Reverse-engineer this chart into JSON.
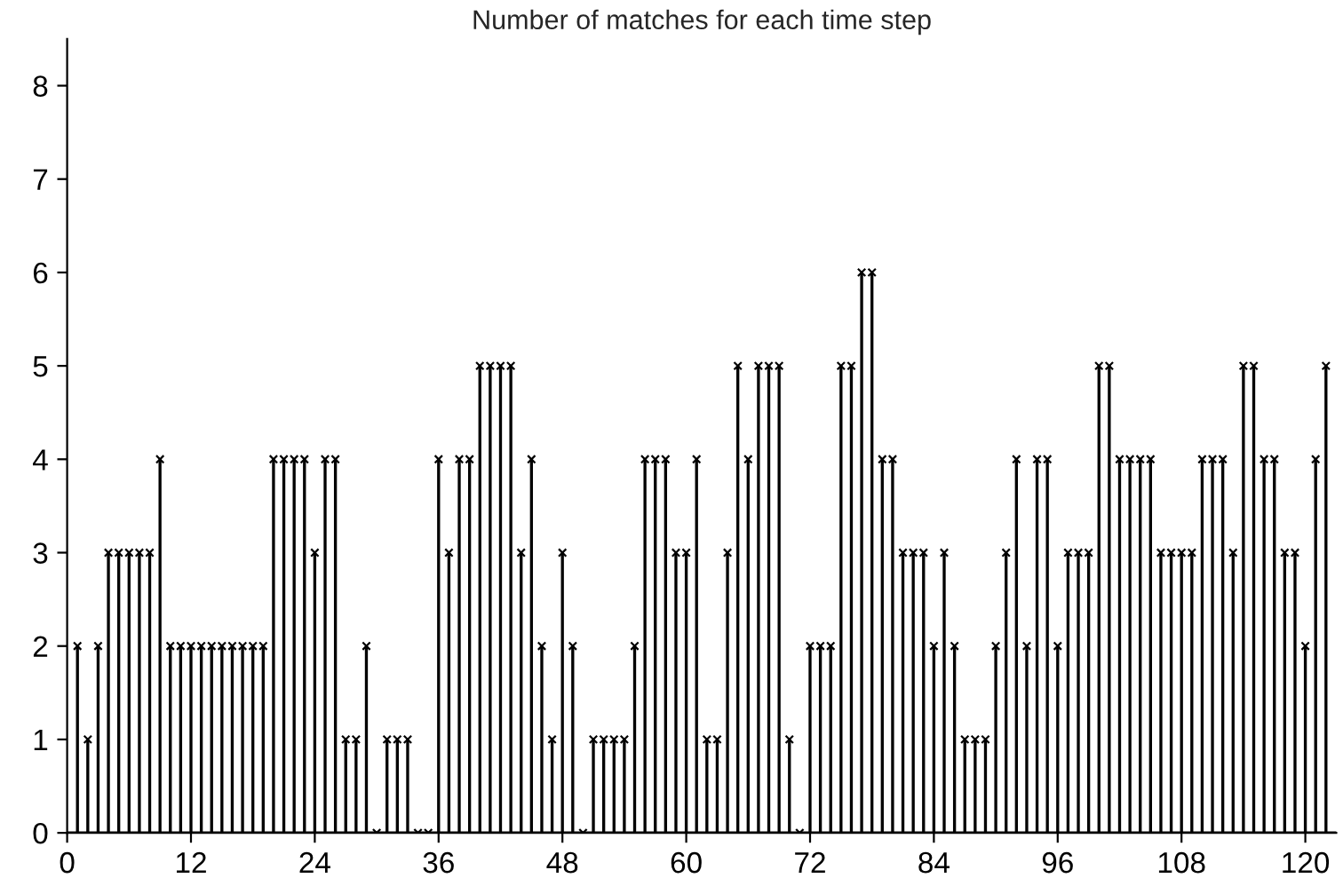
{
  "chart_data": {
    "type": "lollipop",
    "title": "Number of matches for each time step",
    "x": [
      1,
      2,
      3,
      4,
      5,
      6,
      7,
      8,
      9,
      10,
      11,
      12,
      13,
      14,
      15,
      16,
      17,
      18,
      19,
      20,
      21,
      22,
      23,
      24,
      25,
      26,
      27,
      28,
      29,
      30,
      31,
      32,
      33,
      34,
      35,
      36,
      37,
      38,
      39,
      40,
      41,
      42,
      43,
      44,
      45,
      46,
      47,
      48,
      49,
      50,
      51,
      52,
      53,
      54,
      55,
      56,
      57,
      58,
      59,
      60,
      61,
      62,
      63,
      64,
      65,
      66,
      67,
      68,
      69,
      70,
      71,
      72,
      73,
      74,
      75,
      76,
      77,
      78,
      79,
      80,
      81,
      82,
      83,
      84,
      85,
      86,
      87,
      88,
      89,
      90,
      91,
      92,
      93,
      94,
      95,
      96,
      97,
      98,
      99,
      100,
      101,
      102,
      103,
      104,
      105,
      106,
      107,
      108,
      109,
      110,
      111,
      112,
      113,
      114,
      115,
      116,
      117,
      118,
      119,
      120,
      121,
      122
    ],
    "series": [
      {
        "color": "#000000",
        "values": [
          2,
          1,
          2,
          3,
          3,
          3,
          3,
          3,
          4,
          2,
          2,
          2,
          2,
          2,
          2,
          2,
          2,
          2,
          2,
          4,
          4,
          4,
          4,
          3,
          4,
          4,
          1,
          1,
          2,
          0,
          1,
          1,
          1,
          0,
          0,
          4,
          3,
          4,
          4,
          5,
          5,
          5,
          5,
          3,
          4,
          2,
          1,
          3,
          2,
          0,
          1,
          1,
          1,
          1,
          2,
          4,
          4,
          4,
          3,
          3,
          4,
          1,
          1,
          3,
          5,
          4,
          5,
          5,
          5,
          1,
          0,
          2,
          2,
          2,
          5,
          5,
          6,
          6,
          4,
          4,
          3,
          3,
          3,
          2,
          3,
          2,
          1,
          1,
          1,
          2,
          3,
          4,
          2,
          4,
          4,
          2,
          3,
          3,
          3,
          5,
          5,
          4,
          4,
          4,
          4,
          3,
          3,
          3,
          3,
          4,
          4,
          4,
          3,
          5,
          5,
          4,
          4,
          3,
          3,
          2,
          4,
          5
        ]
      }
    ],
    "xlim": [
      0,
      123
    ],
    "ylim": [
      0,
      8.5
    ],
    "xticks": [
      0,
      12,
      24,
      36,
      48,
      60,
      72,
      84,
      96,
      108,
      120
    ],
    "yticks": [
      0,
      1,
      2,
      3,
      4,
      5,
      6,
      7,
      8
    ],
    "marker": "cross",
    "grid": false,
    "legend": false
  }
}
